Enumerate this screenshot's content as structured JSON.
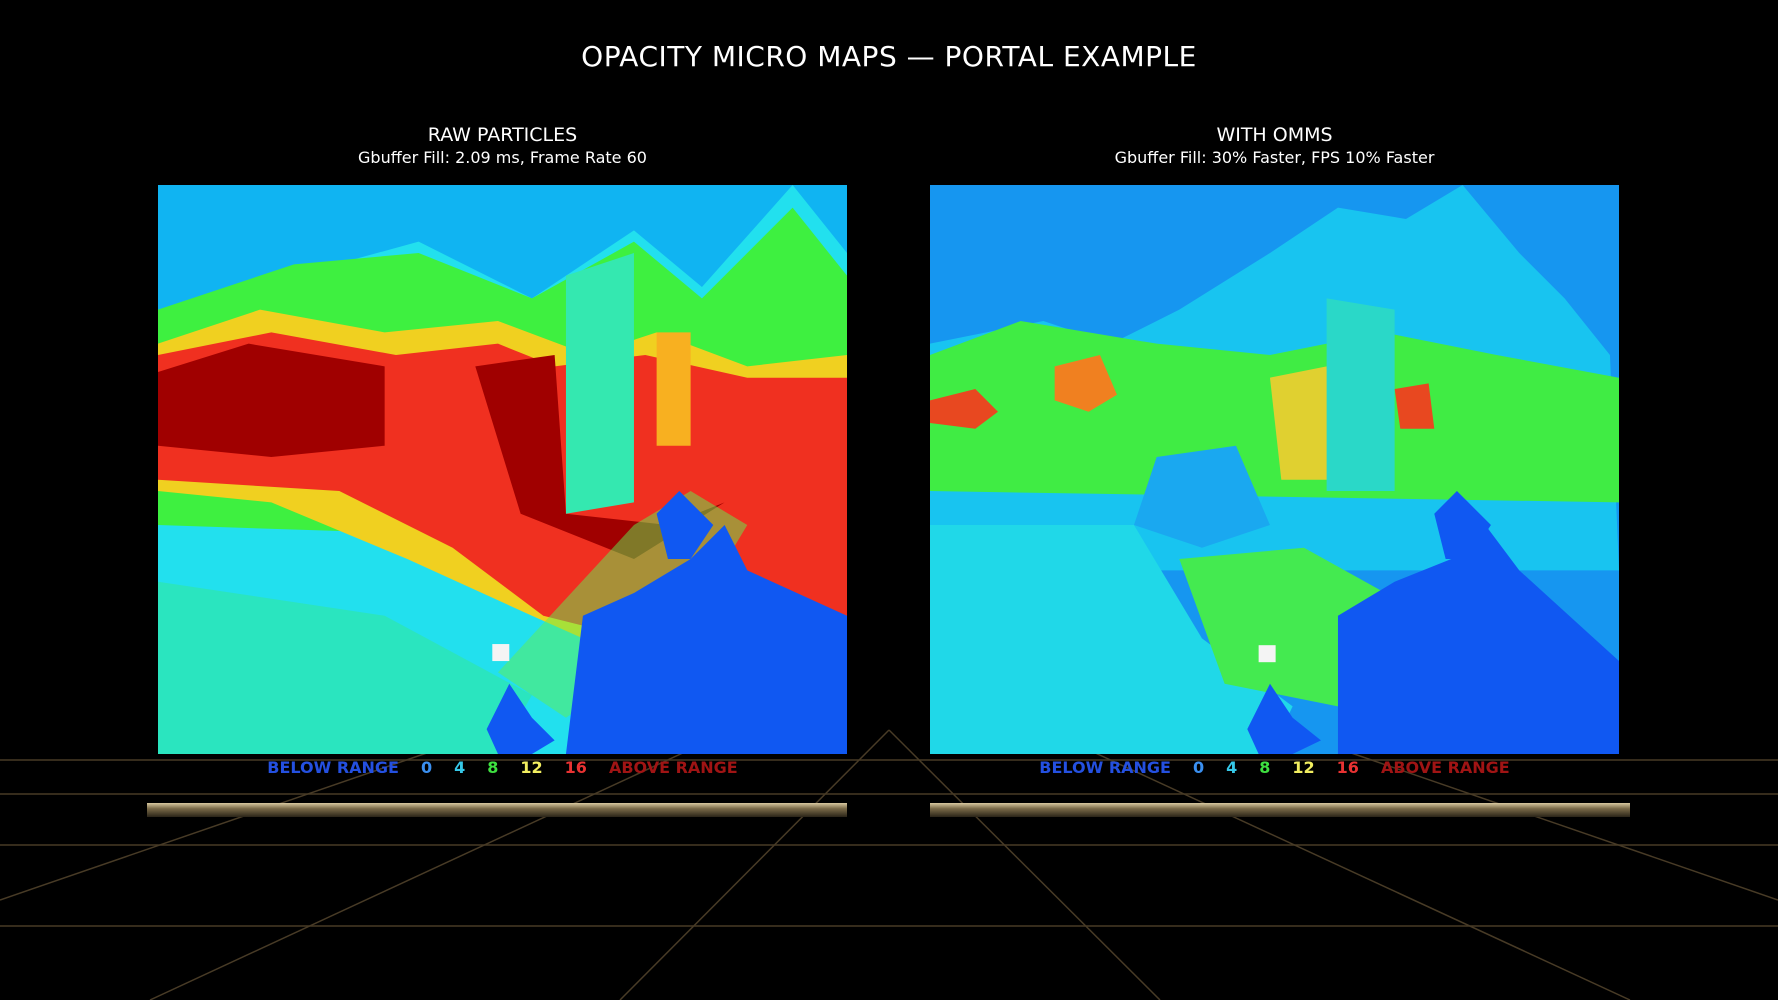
{
  "header": {
    "title": "OPACITY MICRO MAPS — PORTAL EXAMPLE"
  },
  "panels": [
    {
      "title": "RAW PARTICLES",
      "subtitle": "Gbuffer Fill: 2.09 ms, Frame Rate 60",
      "legend": [
        "BELOW RANGE",
        "0",
        "4",
        "8",
        "12",
        "16",
        "ABOVE RANGE"
      ]
    },
    {
      "title": "WITH OMMS",
      "subtitle": "Gbuffer Fill: 30% Faster, FPS 10% Faster",
      "legend": [
        "BELOW RANGE",
        "0",
        "4",
        "8",
        "12",
        "16",
        "ABOVE RANGE"
      ]
    }
  ]
}
